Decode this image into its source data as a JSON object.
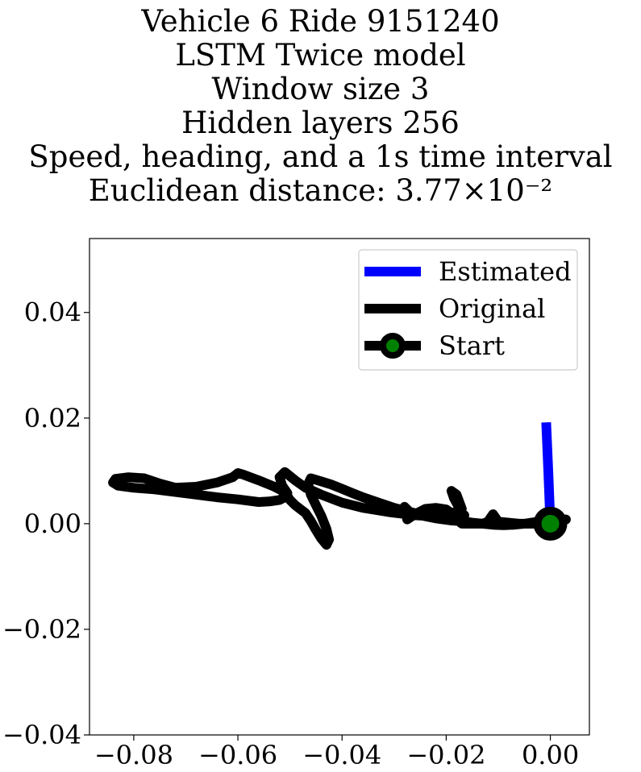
{
  "chart_data": {
    "type": "line",
    "title_lines": [
      "Vehicle 6 Ride 9151240",
      "LSTM Twice model",
      "Window size 3",
      "Hidden layers 256",
      "Speed, heading, and a 1s time interval",
      "Euclidean distance: 3.77×10⁻²"
    ],
    "xlabel": "",
    "ylabel": "",
    "xlim": [
      -0.0885,
      0.0075
    ],
    "ylim": [
      -0.04,
      0.054
    ],
    "x_ticks": [
      -0.08,
      -0.06,
      -0.04,
      -0.02,
      0.0
    ],
    "x_tick_labels": [
      "−0.08",
      "−0.06",
      "−0.04",
      "−0.02",
      "0.00"
    ],
    "y_ticks": [
      0.04,
      0.02,
      0.0,
      -0.02,
      -0.04
    ],
    "y_tick_labels": [
      "0.04",
      "0.02",
      "0.00",
      "−0.02",
      "−0.04"
    ],
    "grid": false,
    "legend_position": "top-right",
    "colors": {
      "estimated": "#0000ff",
      "original": "#000000",
      "start_marker": "#008000"
    },
    "series": [
      {
        "name": "Estimated",
        "color": "#0000ff",
        "x": [
          0.0,
          -0.0004,
          -0.0008
        ],
        "y": [
          0.0,
          0.01,
          0.0192
        ]
      },
      {
        "name": "Original",
        "color": "#000000",
        "x": [
          0.003,
          0.001,
          -0.001,
          -0.003,
          -0.006,
          -0.008,
          -0.01,
          -0.011,
          -0.012,
          -0.013,
          -0.015,
          -0.017,
          -0.018,
          -0.0175,
          -0.0185,
          -0.019,
          -0.018,
          -0.017,
          -0.0175,
          -0.019,
          -0.022,
          -0.025,
          -0.027,
          -0.028,
          -0.0275,
          -0.026,
          -0.024,
          -0.022,
          -0.02,
          -0.019,
          -0.0175,
          -0.0165,
          -0.017,
          -0.0185,
          -0.021,
          -0.026,
          -0.031,
          -0.036,
          -0.04,
          -0.044,
          -0.047,
          -0.049,
          -0.051,
          -0.052,
          -0.0515,
          -0.0505,
          -0.051,
          -0.052,
          -0.054,
          -0.056,
          -0.06,
          -0.064,
          -0.068,
          -0.072,
          -0.076,
          -0.08,
          -0.083,
          -0.084,
          -0.0835,
          -0.081,
          -0.078,
          -0.075,
          -0.072,
          -0.068,
          -0.064,
          -0.061,
          -0.06,
          -0.059,
          -0.056,
          -0.053,
          -0.051,
          -0.05,
          -0.049,
          -0.047,
          -0.046,
          -0.045,
          -0.044,
          -0.043,
          -0.0425,
          -0.043,
          -0.044,
          -0.045,
          -0.046,
          -0.0465,
          -0.046,
          -0.044,
          -0.042,
          -0.04,
          -0.038,
          -0.036,
          -0.033,
          -0.03,
          -0.026,
          -0.023,
          -0.02,
          -0.018,
          -0.015,
          -0.013,
          -0.011,
          -0.009,
          -0.007,
          -0.005,
          -0.003,
          -0.001,
          0.001,
          0.003
        ],
        "y": [
          0.0008,
          0.0004,
          0.0,
          0.0,
          0.0,
          0.0002,
          0.0004,
          0.0018,
          0.0004,
          0.0,
          0.0,
          0.0,
          0.0008,
          0.003,
          0.0048,
          0.0062,
          0.0055,
          0.0028,
          0.0005,
          0.0006,
          0.001,
          0.0016,
          0.0022,
          0.0032,
          0.0008,
          0.0018,
          0.0028,
          0.003,
          0.0027,
          0.002,
          0.0024,
          0.0016,
          0.001,
          0.0011,
          0.0013,
          0.0016,
          0.0022,
          0.003,
          0.004,
          0.0055,
          0.0068,
          0.0082,
          0.0098,
          0.0088,
          0.0072,
          0.0058,
          0.005,
          0.0045,
          0.0042,
          0.0041,
          0.0046,
          0.005,
          0.0055,
          0.006,
          0.0065,
          0.0068,
          0.0072,
          0.0078,
          0.0085,
          0.0088,
          0.0086,
          0.0076,
          0.0068,
          0.007,
          0.0078,
          0.0088,
          0.0096,
          0.0093,
          0.0082,
          0.007,
          0.006,
          0.0045,
          0.0035,
          0.002,
          0.0005,
          -0.0012,
          -0.0028,
          -0.004,
          -0.003,
          -0.001,
          0.0015,
          0.0035,
          0.0055,
          0.0075,
          0.0086,
          0.008,
          0.0074,
          0.0066,
          0.0058,
          0.005,
          0.004,
          0.003,
          0.002,
          0.0014,
          0.001,
          0.0006,
          0.0002,
          0.0,
          -0.0002,
          -0.0003,
          -0.0002,
          0.0,
          0.0003,
          0.0006,
          0.0008,
          0.0008
        ]
      },
      {
        "name": "Start",
        "color": "#000000",
        "marker_color": "#008000",
        "x": [
          0.0
        ],
        "y": [
          0.0
        ]
      }
    ]
  }
}
